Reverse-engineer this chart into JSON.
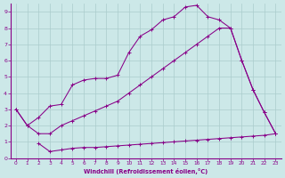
{
  "background_color": "#cce8e8",
  "grid_color": "#aacccc",
  "line_color": "#880088",
  "xlabel": "Windchill (Refroidissement éolien,°C)",
  "xlabel_color": "#880088",
  "xtick_color": "#880088",
  "ytick_color": "#880088",
  "xlim": [
    -0.5,
    23.5
  ],
  "ylim": [
    0,
    9.5
  ],
  "xticks": [
    0,
    1,
    2,
    3,
    4,
    5,
    6,
    7,
    8,
    9,
    10,
    11,
    12,
    13,
    14,
    15,
    16,
    17,
    18,
    19,
    20,
    21,
    22,
    23
  ],
  "yticks": [
    0,
    1,
    2,
    3,
    4,
    5,
    6,
    7,
    8,
    9
  ],
  "line1_x": [
    0,
    1,
    2,
    3,
    4,
    5,
    6,
    7,
    8,
    9,
    10,
    11,
    12,
    13,
    14,
    15,
    16,
    17,
    18,
    19,
    20,
    21,
    22,
    23
  ],
  "line1_y": [
    3.0,
    2.0,
    2.5,
    3.2,
    3.3,
    4.5,
    4.8,
    4.9,
    4.9,
    5.1,
    6.5,
    7.5,
    7.9,
    8.5,
    8.7,
    9.3,
    9.4,
    8.7,
    8.5,
    8.0,
    6.0,
    4.2,
    2.8,
    1.5
  ],
  "line2_x": [
    0,
    1,
    2,
    3,
    4,
    5,
    6,
    7,
    8,
    9,
    10,
    11,
    12,
    13,
    14,
    15,
    16,
    17,
    18,
    19,
    20,
    21,
    22,
    23
  ],
  "line2_y": [
    3.0,
    2.0,
    1.5,
    1.5,
    2.0,
    2.3,
    2.6,
    2.9,
    3.2,
    3.5,
    4.0,
    4.5,
    5.0,
    5.5,
    6.0,
    6.5,
    7.0,
    7.5,
    8.0,
    8.0,
    6.0,
    4.2,
    2.8,
    1.5
  ],
  "line3_x": [
    2,
    3,
    4,
    5,
    6,
    7,
    8,
    9,
    10,
    11,
    12,
    13,
    14,
    15,
    16,
    17,
    18,
    19,
    20,
    21,
    22,
    23
  ],
  "line3_y": [
    0.9,
    0.4,
    0.5,
    0.6,
    0.65,
    0.65,
    0.7,
    0.75,
    0.8,
    0.85,
    0.9,
    0.95,
    1.0,
    1.05,
    1.1,
    1.15,
    1.2,
    1.25,
    1.3,
    1.35,
    1.4,
    1.5
  ]
}
